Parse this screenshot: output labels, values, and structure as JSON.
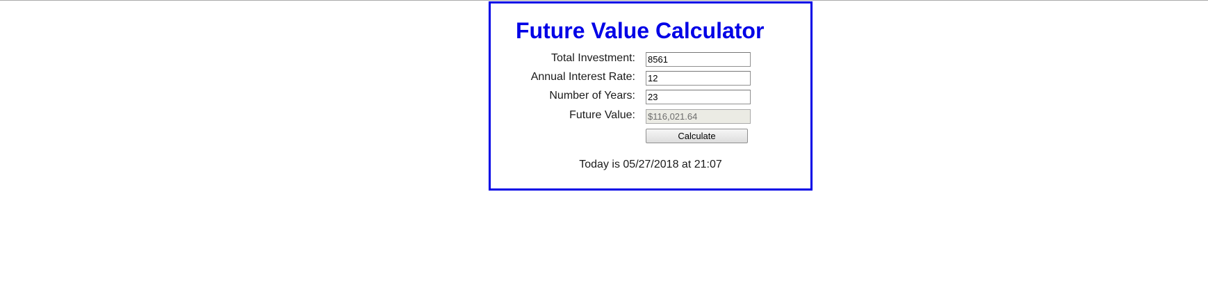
{
  "calculator": {
    "title": "Future Value Calculator",
    "fields": [
      {
        "label": "Total Investment:",
        "value": "8561",
        "readonly": false
      },
      {
        "label": "Annual Interest Rate:",
        "value": "12",
        "readonly": false
      },
      {
        "label": "Number of Years:",
        "value": "23",
        "readonly": false
      },
      {
        "label": "Future Value:",
        "value": "$116,021.64",
        "readonly": true
      }
    ],
    "calculate_label": "Calculate",
    "today_text": "Today is 05/27/2018 at 21:07"
  },
  "colors": {
    "accent": "#0000e6",
    "readonly_bg": "#ebebe4"
  }
}
